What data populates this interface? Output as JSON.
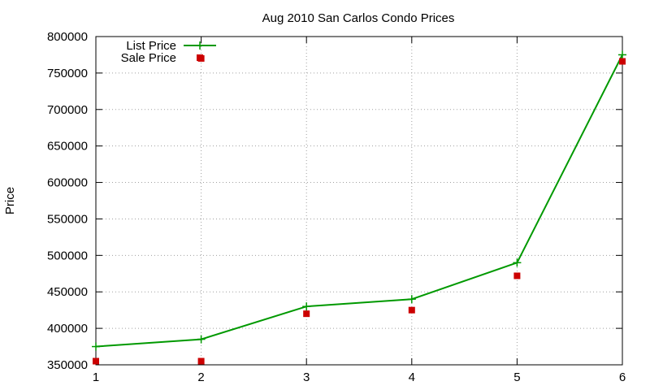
{
  "chart_data": {
    "type": "line",
    "title": "Aug 2010 San Carlos Condo Prices",
    "xlabel": "",
    "ylabel": "Price",
    "x": [
      1,
      2,
      3,
      4,
      5,
      6
    ],
    "xlim": [
      1,
      6
    ],
    "ylim": [
      350000,
      800000
    ],
    "xticks": [
      "1",
      "2",
      "3",
      "4",
      "5",
      "6"
    ],
    "yticks": [
      "350000",
      "400000",
      "450000",
      "500000",
      "550000",
      "600000",
      "650000",
      "700000",
      "750000",
      "800000"
    ],
    "grid": true,
    "legend_position": "top-left",
    "series": [
      {
        "name": "List Price",
        "style": "line-with-plus-markers",
        "color": "#009900",
        "points": [
          [
            1,
            375000
          ],
          [
            2,
            385000
          ],
          [
            3,
            430000
          ],
          [
            4,
            440000
          ],
          [
            5,
            490000
          ],
          [
            6,
            775000
          ]
        ]
      },
      {
        "name": "Sale Price",
        "style": "square-markers",
        "color": "#cc0000",
        "points": [
          [
            1,
            355000
          ],
          [
            2,
            770000
          ],
          [
            2,
            355000
          ],
          [
            3,
            420000
          ],
          [
            4,
            425000
          ],
          [
            5,
            472000
          ],
          [
            6,
            766000
          ]
        ]
      }
    ]
  }
}
